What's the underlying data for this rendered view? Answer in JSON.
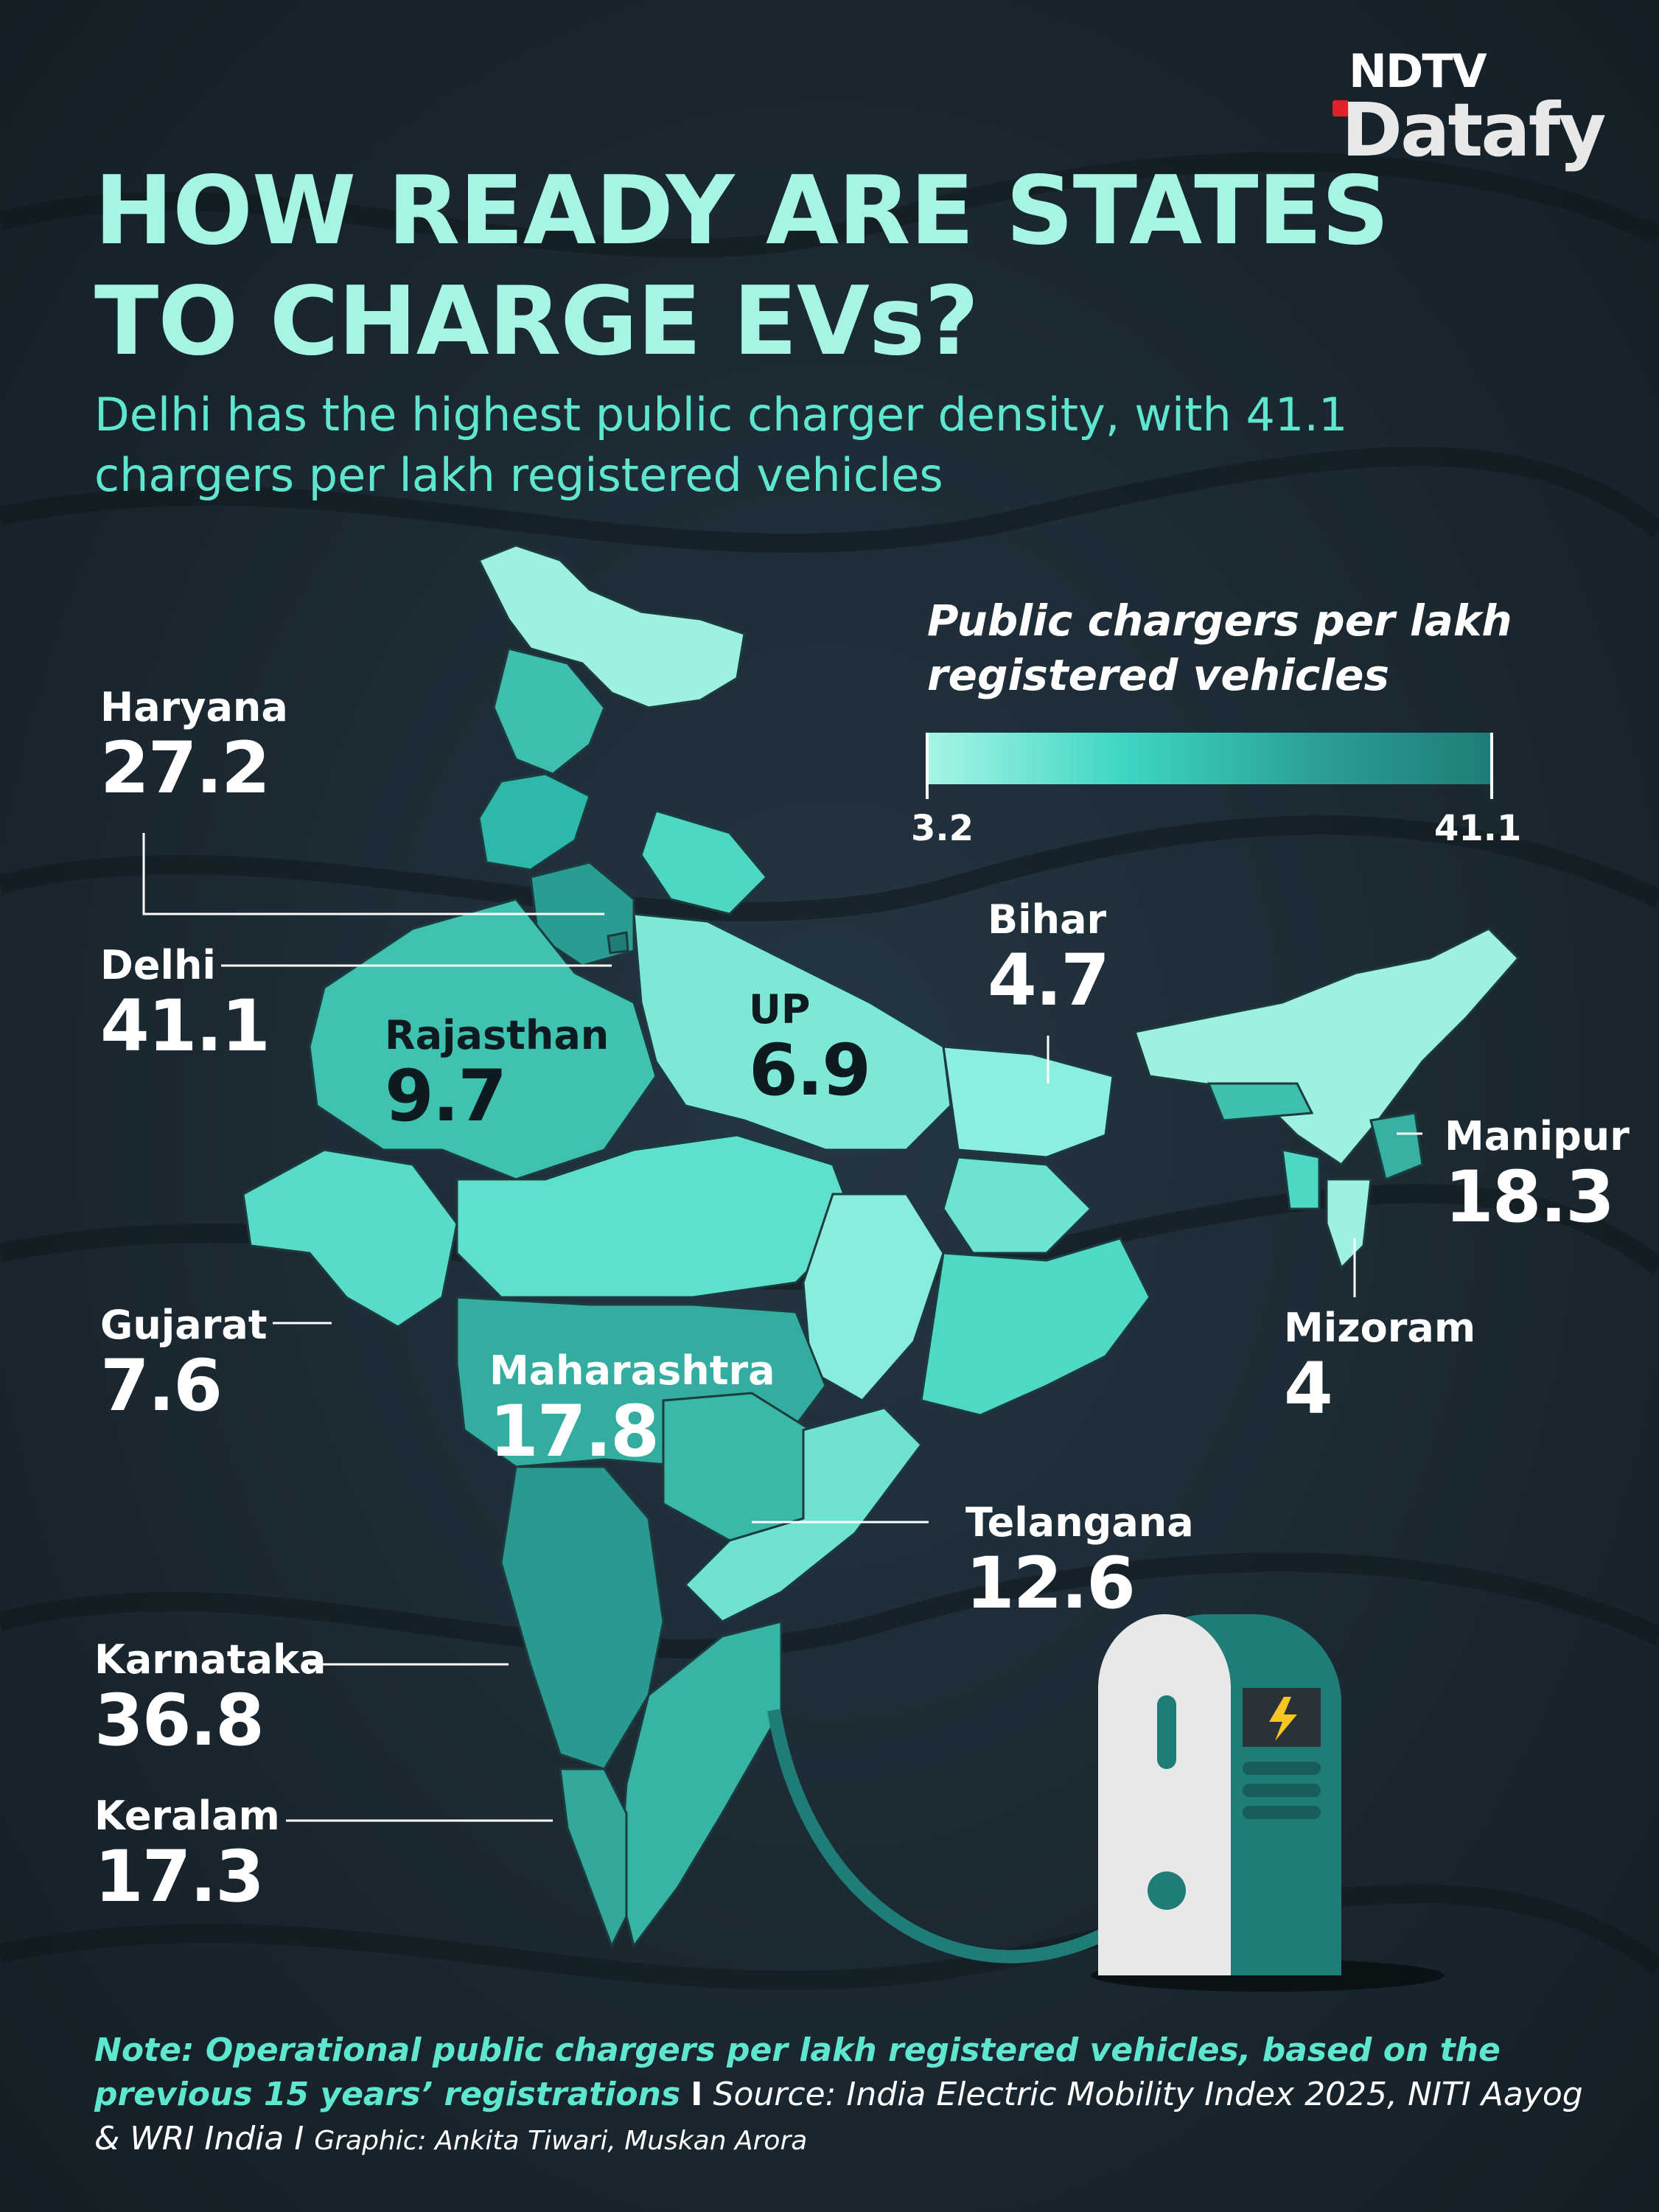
{
  "brand": {
    "top": "NDTV",
    "bottom": "Datafy"
  },
  "title": "HOW READY ARE STATES TO CHARGE EVs?",
  "subtitle": "Delhi has the highest public charger density, with 41.1 chargers per lakh registered vehicles",
  "legend": {
    "title": "Public chargers per lakh registered vehicles",
    "min": "3.2",
    "max": "41.1",
    "colors": [
      "#a7f5e6",
      "#3dd6c2",
      "#2b9e94",
      "#1f7c77"
    ]
  },
  "states": [
    {
      "name": "Haryana",
      "value": "27.2"
    },
    {
      "name": "Delhi",
      "value": "41.1"
    },
    {
      "name": "Rajasthan",
      "value": "9.7"
    },
    {
      "name": "UP",
      "value": "6.9"
    },
    {
      "name": "Bihar",
      "value": "4.7"
    },
    {
      "name": "Manipur",
      "value": "18.3"
    },
    {
      "name": "Mizoram",
      "value": "4"
    },
    {
      "name": "Gujarat",
      "value": "7.6"
    },
    {
      "name": "Maharashtra",
      "value": "17.8"
    },
    {
      "name": "Telangana",
      "value": "12.6"
    },
    {
      "name": "Karnataka",
      "value": "36.8"
    },
    {
      "name": "Keralam",
      "value": "17.3"
    }
  ],
  "note": {
    "note_text": "Note: Operational public chargers per lakh registered vehicles, based on the previous 15 years’ registrations",
    "separator": "I",
    "source": "Source: India Electric Mobility Index 2025, NITI Aayog & WRI India",
    "separator2": "I",
    "graphic": "Graphic: Ankita Tiwari, Muskan Arora"
  },
  "icons": [
    "ev-charger-icon",
    "lightning-icon"
  ]
}
